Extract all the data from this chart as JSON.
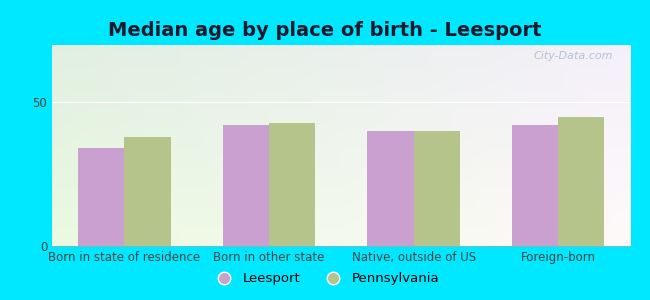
{
  "title": "Median age by place of birth - Leesport",
  "categories": [
    "Born in state of residence",
    "Born in other state",
    "Native, outside of US",
    "Foreign-born"
  ],
  "leesport_values": [
    34,
    42,
    40,
    42
  ],
  "pennsylvania_values": [
    38,
    43,
    40,
    45
  ],
  "leesport_color": "#c9a0d0",
  "pennsylvania_color": "#b5c48a",
  "ylim": [
    0,
    70
  ],
  "yticks": [
    0,
    50
  ],
  "figure_bg": "#00e8ff",
  "plot_bg_top_left": "#e0f0e0",
  "plot_bg_top_right": "#d8e8f0",
  "plot_bg_bottom": "#f0faf0",
  "bar_width": 0.32,
  "legend_leesport": "Leesport",
  "legend_pennsylvania": "Pennsylvania",
  "title_fontsize": 14,
  "axis_label_fontsize": 8.5,
  "watermark": "City-Data.com"
}
